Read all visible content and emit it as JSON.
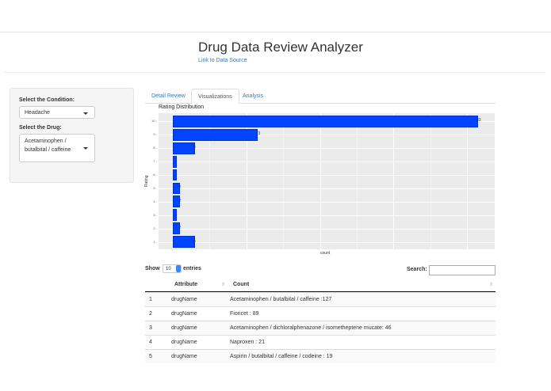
{
  "header": {
    "title": "Drug Data Review Analyzer",
    "link_label": "Link to Data Source"
  },
  "sidebar": {
    "condition_label": "Select the Condition:",
    "condition_value": "Headache",
    "drug_label": "Select the Drug:",
    "drug_value": "Acetaminophen / butalbital / caffeine"
  },
  "tabs": [
    {
      "label": "Detail Review",
      "active": false
    },
    {
      "label": "Visualizations",
      "active": true
    },
    {
      "label": "Analysis",
      "active": false
    }
  ],
  "chart_data": {
    "type": "bar",
    "orientation": "horizontal",
    "title": "Rating Distribution",
    "xlabel": "count",
    "ylabel": "Rating",
    "categories": [
      "1",
      "2",
      "3",
      "4",
      "5",
      "6",
      "7",
      "8",
      "9",
      "10"
    ],
    "values": [
      6,
      2,
      1,
      2,
      2,
      1,
      1,
      6,
      23,
      83
    ],
    "xlim": [
      0,
      87
    ],
    "bar_color": "#0044ff",
    "grid": true,
    "legend": "none"
  },
  "datatable": {
    "show_label": "Show",
    "length_value": "10",
    "entries_label": "entries",
    "search_label": "Search:",
    "search_value": "",
    "columns": [
      "",
      "Attribute",
      "Count"
    ],
    "rows": [
      {
        "index": "1",
        "attribute": "drugName",
        "count": "Acetaminophen / butalbital / caffeine :127"
      },
      {
        "index": "2",
        "attribute": "drugName",
        "count": "Fioricet : 89"
      },
      {
        "index": "3",
        "attribute": "drugName",
        "count": "Acetaminophen / dichloralphenazone / isometheptene mucate: 46"
      },
      {
        "index": "4",
        "attribute": "drugName",
        "count": "Naproxen : 21"
      },
      {
        "index": "5",
        "attribute": "drugName",
        "count": "Aspirin / butalbital / caffeine / codeine : 19"
      }
    ]
  }
}
